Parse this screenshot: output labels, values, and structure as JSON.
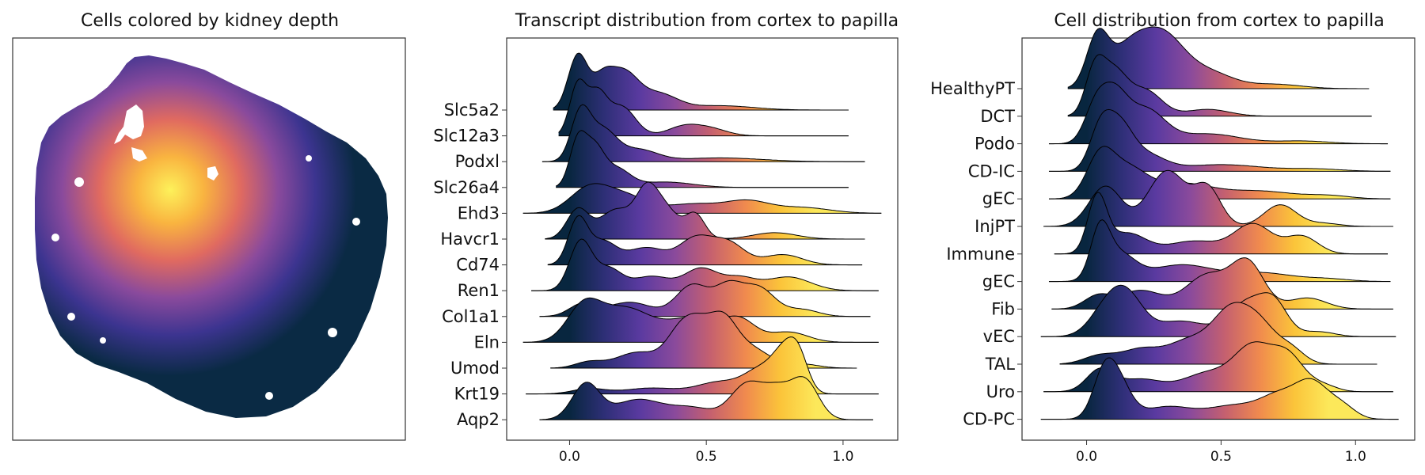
{
  "titles": {
    "spatial": "Cells colored by kidney depth",
    "transcripts": "Transcript distribution from cortex to papilla",
    "cells": "Cell distribution from cortex to papilla"
  },
  "colors": {
    "ramp": [
      "#08263f",
      "#2e2f77",
      "#5a3aa0",
      "#8a4a9c",
      "#c5606f",
      "#f08a4e",
      "#fbc43a",
      "#fce85a"
    ],
    "outline": "#000000",
    "frame": "#333333"
  },
  "chart_data": [
    {
      "type": "scatter",
      "id": "spatial",
      "title": "Cells colored by kidney depth",
      "description_colormap": "depth",
      "grid": false,
      "axes_ticks": false
    },
    {
      "type": "area",
      "id": "transcripts",
      "title": "Transcript distribution from cortex to papilla",
      "xlim": [
        -0.23,
        1.2
      ],
      "xticks": [
        0.0,
        0.5,
        1.0
      ],
      "xticklabels": [
        "0.0",
        "0.5",
        "1.0"
      ],
      "grid": false,
      "series": [
        {
          "name": "Slc5a2",
          "range": [
            -0.06,
            1.02
          ],
          "peaks": [
            [
              0.03,
              1.0,
              0.035
            ],
            [
              0.12,
              0.55,
              0.04
            ],
            [
              0.2,
              0.62,
              0.05
            ],
            [
              0.32,
              0.3,
              0.07
            ],
            [
              0.55,
              0.08,
              0.12
            ]
          ]
        },
        {
          "name": "Slc12a3",
          "range": [
            -0.04,
            1.02
          ],
          "peaks": [
            [
              0.03,
              0.95,
              0.03
            ],
            [
              0.1,
              0.75,
              0.035
            ],
            [
              0.19,
              0.55,
              0.05
            ],
            [
              0.42,
              0.18,
              0.06
            ],
            [
              0.52,
              0.12,
              0.06
            ]
          ]
        },
        {
          "name": "Podxl",
          "range": [
            -0.1,
            1.08
          ],
          "peaks": [
            [
              0.04,
              1.0,
              0.035
            ],
            [
              0.12,
              0.65,
              0.05
            ],
            [
              0.25,
              0.25,
              0.07
            ],
            [
              0.55,
              0.08,
              0.15
            ]
          ]
        },
        {
          "name": "Slc26a4",
          "range": [
            -0.05,
            1.02
          ],
          "peaks": [
            [
              0.03,
              1.0,
              0.03
            ],
            [
              0.09,
              0.8,
              0.035
            ],
            [
              0.17,
              0.4,
              0.05
            ],
            [
              0.35,
              0.12,
              0.1
            ]
          ]
        },
        {
          "name": "Ehd3",
          "range": [
            -0.17,
            1.14
          ],
          "peaks": [
            [
              0.07,
              0.42,
              0.07
            ],
            [
              0.2,
              0.3,
              0.08
            ],
            [
              0.45,
              0.16,
              0.1
            ],
            [
              0.65,
              0.2,
              0.08
            ],
            [
              0.85,
              0.1,
              0.1
            ]
          ]
        },
        {
          "name": "Havcr1",
          "range": [
            -0.09,
            1.08
          ],
          "peaks": [
            [
              0.03,
              0.55,
              0.04
            ],
            [
              0.17,
              0.55,
              0.06
            ],
            [
              0.28,
              0.75,
              0.04
            ],
            [
              0.35,
              0.55,
              0.05
            ],
            [
              0.46,
              0.45,
              0.035
            ],
            [
              0.75,
              0.12,
              0.08
            ]
          ]
        },
        {
          "name": "Cd74",
          "range": [
            -0.08,
            1.07
          ],
          "peaks": [
            [
              0.03,
              0.78,
              0.035
            ],
            [
              0.12,
              0.4,
              0.05
            ],
            [
              0.28,
              0.3,
              0.07
            ],
            [
              0.46,
              0.45,
              0.06
            ],
            [
              0.58,
              0.38,
              0.06
            ],
            [
              0.78,
              0.18,
              0.07
            ]
          ]
        },
        {
          "name": "Ren1",
          "range": [
            -0.14,
            1.13
          ],
          "peaks": [
            [
              0.04,
              0.85,
              0.04
            ],
            [
              0.14,
              0.38,
              0.05
            ],
            [
              0.3,
              0.25,
              0.07
            ],
            [
              0.48,
              0.38,
              0.06
            ],
            [
              0.62,
              0.22,
              0.06
            ],
            [
              0.8,
              0.24,
              0.08
            ]
          ]
        },
        {
          "name": "Col1a1",
          "range": [
            -0.11,
            1.1
          ],
          "peaks": [
            [
              0.05,
              0.22,
              0.05
            ],
            [
              0.22,
              0.25,
              0.08
            ],
            [
              0.45,
              0.55,
              0.06
            ],
            [
              0.58,
              0.48,
              0.05
            ],
            [
              0.69,
              0.5,
              0.06
            ],
            [
              0.85,
              0.12,
              0.06
            ]
          ]
        },
        {
          "name": "Eln",
          "range": [
            -0.17,
            1.13
          ],
          "peaks": [
            [
              0.05,
              0.55,
              0.06
            ],
            [
              0.2,
              0.6,
              0.1
            ],
            [
              0.45,
              0.4,
              0.09
            ],
            [
              0.62,
              0.38,
              0.06
            ],
            [
              0.8,
              0.18,
              0.07
            ]
          ]
        },
        {
          "name": "Umod",
          "range": [
            -0.07,
            1.05
          ],
          "peaks": [
            [
              0.07,
              0.12,
              0.05
            ],
            [
              0.25,
              0.32,
              0.08
            ],
            [
              0.4,
              0.6,
              0.05
            ],
            [
              0.47,
              0.7,
              0.05
            ],
            [
              0.56,
              0.85,
              0.05
            ],
            [
              0.66,
              0.4,
              0.07
            ],
            [
              0.85,
              0.08,
              0.06
            ]
          ]
        },
        {
          "name": "Krt19",
          "range": [
            -0.16,
            1.13
          ],
          "peaks": [
            [
              0.07,
              0.13,
              0.06
            ],
            [
              0.3,
              0.15,
              0.1
            ],
            [
              0.55,
              0.3,
              0.08
            ],
            [
              0.7,
              0.58,
              0.06
            ],
            [
              0.79,
              0.95,
              0.045
            ],
            [
              0.84,
              0.7,
              0.035
            ]
          ]
        },
        {
          "name": "Aqp2",
          "range": [
            -0.11,
            1.11
          ],
          "peaks": [
            [
              0.06,
              0.62,
              0.05
            ],
            [
              0.25,
              0.35,
              0.09
            ],
            [
              0.45,
              0.2,
              0.08
            ],
            [
              0.65,
              0.62,
              0.06
            ],
            [
              0.76,
              0.45,
              0.05
            ],
            [
              0.86,
              0.68,
              0.05
            ]
          ]
        }
      ]
    },
    {
      "type": "area",
      "id": "cells",
      "title": "Cell distribution from cortex to papilla",
      "xlim": [
        -0.24,
        1.22
      ],
      "xticks": [
        0.0,
        0.5,
        1.0
      ],
      "xticklabels": [
        "0.0",
        "0.5",
        "1.0"
      ],
      "grid": false,
      "series": [
        {
          "name": "HealthyPT",
          "range": [
            -0.07,
            1.05
          ],
          "peaks": [
            [
              0.04,
              0.9,
              0.04
            ],
            [
              0.15,
              0.65,
              0.07
            ],
            [
              0.28,
              0.95,
              0.08
            ],
            [
              0.45,
              0.3,
              0.09
            ],
            [
              0.7,
              0.08,
              0.1
            ]
          ]
        },
        {
          "name": "DCT",
          "range": [
            -0.07,
            1.06
          ],
          "peaks": [
            [
              0.03,
              0.9,
              0.035
            ],
            [
              0.1,
              0.95,
              0.05
            ],
            [
              0.22,
              0.55,
              0.06
            ],
            [
              0.45,
              0.15,
              0.08
            ]
          ]
        },
        {
          "name": "Podo",
          "range": [
            -0.14,
            1.12
          ],
          "peaks": [
            [
              0.03,
              0.55,
              0.04
            ],
            [
              0.1,
              0.85,
              0.05
            ],
            [
              0.22,
              0.6,
              0.07
            ],
            [
              0.45,
              0.18,
              0.12
            ],
            [
              0.8,
              0.05,
              0.1
            ]
          ]
        },
        {
          "name": "CD-IC",
          "range": [
            -0.14,
            1.13
          ],
          "peaks": [
            [
              0.05,
              0.85,
              0.04
            ],
            [
              0.12,
              0.95,
              0.05
            ],
            [
              0.22,
              0.35,
              0.07
            ],
            [
              0.5,
              0.15,
              0.15
            ],
            [
              0.85,
              0.05,
              0.1
            ]
          ]
        },
        {
          "name": "gEC",
          "range": [
            -0.14,
            1.13
          ],
          "peaks": [
            [
              0.05,
              0.65,
              0.05
            ],
            [
              0.15,
              0.45,
              0.07
            ],
            [
              0.35,
              0.25,
              0.12
            ],
            [
              0.65,
              0.12,
              0.12
            ],
            [
              0.9,
              0.05,
              0.08
            ]
          ]
        },
        {
          "name": "InjPT",
          "range": [
            -0.16,
            1.14
          ],
          "peaks": [
            [
              0.07,
              0.65,
              0.06
            ],
            [
              0.3,
              0.9,
              0.07
            ],
            [
              0.45,
              0.6,
              0.05
            ],
            [
              0.72,
              0.35,
              0.06
            ],
            [
              0.88,
              0.05,
              0.06
            ]
          ]
        },
        {
          "name": "Immune",
          "range": [
            -0.12,
            1.12
          ],
          "peaks": [
            [
              0.04,
              0.95,
              0.035
            ],
            [
              0.15,
              0.35,
              0.07
            ],
            [
              0.4,
              0.22,
              0.1
            ],
            [
              0.62,
              0.5,
              0.07
            ],
            [
              0.8,
              0.3,
              0.06
            ]
          ]
        },
        {
          "name": "gEC",
          "range": [
            -0.14,
            1.13
          ],
          "peaks": [
            [
              0.05,
              1.0,
              0.035
            ],
            [
              0.12,
              0.55,
              0.06
            ],
            [
              0.35,
              0.35,
              0.12
            ],
            [
              0.65,
              0.18,
              0.12
            ],
            [
              0.9,
              0.05,
              0.08
            ]
          ]
        },
        {
          "name": "Fib",
          "range": [
            -0.13,
            1.14
          ],
          "peaks": [
            [
              0.04,
              0.2,
              0.05
            ],
            [
              0.2,
              0.3,
              0.08
            ],
            [
              0.45,
              0.55,
              0.08
            ],
            [
              0.6,
              0.72,
              0.06
            ],
            [
              0.82,
              0.18,
              0.07
            ]
          ]
        },
        {
          "name": "vEC",
          "range": [
            -0.17,
            1.15
          ],
          "peaks": [
            [
              0.07,
              0.4,
              0.06
            ],
            [
              0.15,
              0.6,
              0.06
            ],
            [
              0.35,
              0.25,
              0.1
            ],
            [
              0.6,
              0.55,
              0.07
            ],
            [
              0.7,
              0.45,
              0.05
            ],
            [
              0.86,
              0.08,
              0.06
            ]
          ]
        },
        {
          "name": "TAL",
          "range": [
            -0.1,
            1.08
          ],
          "peaks": [
            [
              0.05,
              0.15,
              0.06
            ],
            [
              0.2,
              0.25,
              0.07
            ],
            [
              0.38,
              0.4,
              0.08
            ],
            [
              0.54,
              0.9,
              0.07
            ],
            [
              0.65,
              0.55,
              0.06
            ],
            [
              0.76,
              0.25,
              0.05
            ]
          ]
        },
        {
          "name": "Uro",
          "range": [
            -0.16,
            1.14
          ],
          "peaks": [
            [
              0.05,
              0.35,
              0.05
            ],
            [
              0.2,
              0.2,
              0.08
            ],
            [
              0.45,
              0.3,
              0.09
            ],
            [
              0.62,
              0.7,
              0.07
            ],
            [
              0.75,
              0.55,
              0.06
            ],
            [
              0.88,
              0.1,
              0.05
            ]
          ]
        },
        {
          "name": "CD-PC",
          "range": [
            -0.17,
            1.16
          ],
          "peaks": [
            [
              0.06,
              0.5,
              0.04
            ],
            [
              0.11,
              0.65,
              0.05
            ],
            [
              0.3,
              0.2,
              0.09
            ],
            [
              0.55,
              0.22,
              0.1
            ],
            [
              0.72,
              0.35,
              0.07
            ],
            [
              0.84,
              0.55,
              0.06
            ],
            [
              0.95,
              0.2,
              0.05
            ]
          ]
        }
      ]
    }
  ]
}
